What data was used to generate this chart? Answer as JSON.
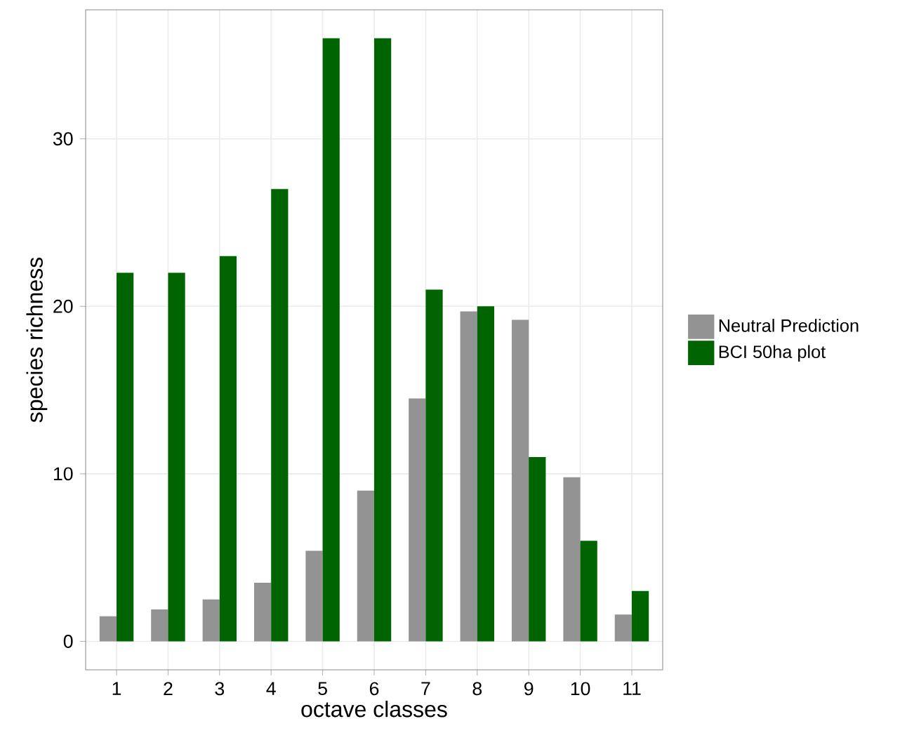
{
  "chart_data": {
    "type": "bar",
    "xlabel": "octave classes",
    "ylabel": "species richness",
    "categories": [
      "1",
      "2",
      "3",
      "4",
      "5",
      "6",
      "7",
      "8",
      "9",
      "10",
      "11"
    ],
    "series": [
      {
        "name": "Neutral Prediction",
        "color": "#939393",
        "values": [
          1.5,
          1.9,
          2.5,
          3.5,
          5.4,
          9.0,
          14.5,
          19.7,
          19.2,
          9.8,
          1.6
        ]
      },
      {
        "name": "BCI 50ha plot",
        "color": "#006400",
        "values": [
          22,
          22,
          23,
          27,
          36,
          36,
          21,
          20,
          11,
          6,
          3
        ]
      }
    ],
    "ylim": [
      -1.7,
      37.7
    ],
    "yticks": [
      0,
      10,
      20,
      30
    ],
    "grid": true,
    "legend": "right"
  }
}
